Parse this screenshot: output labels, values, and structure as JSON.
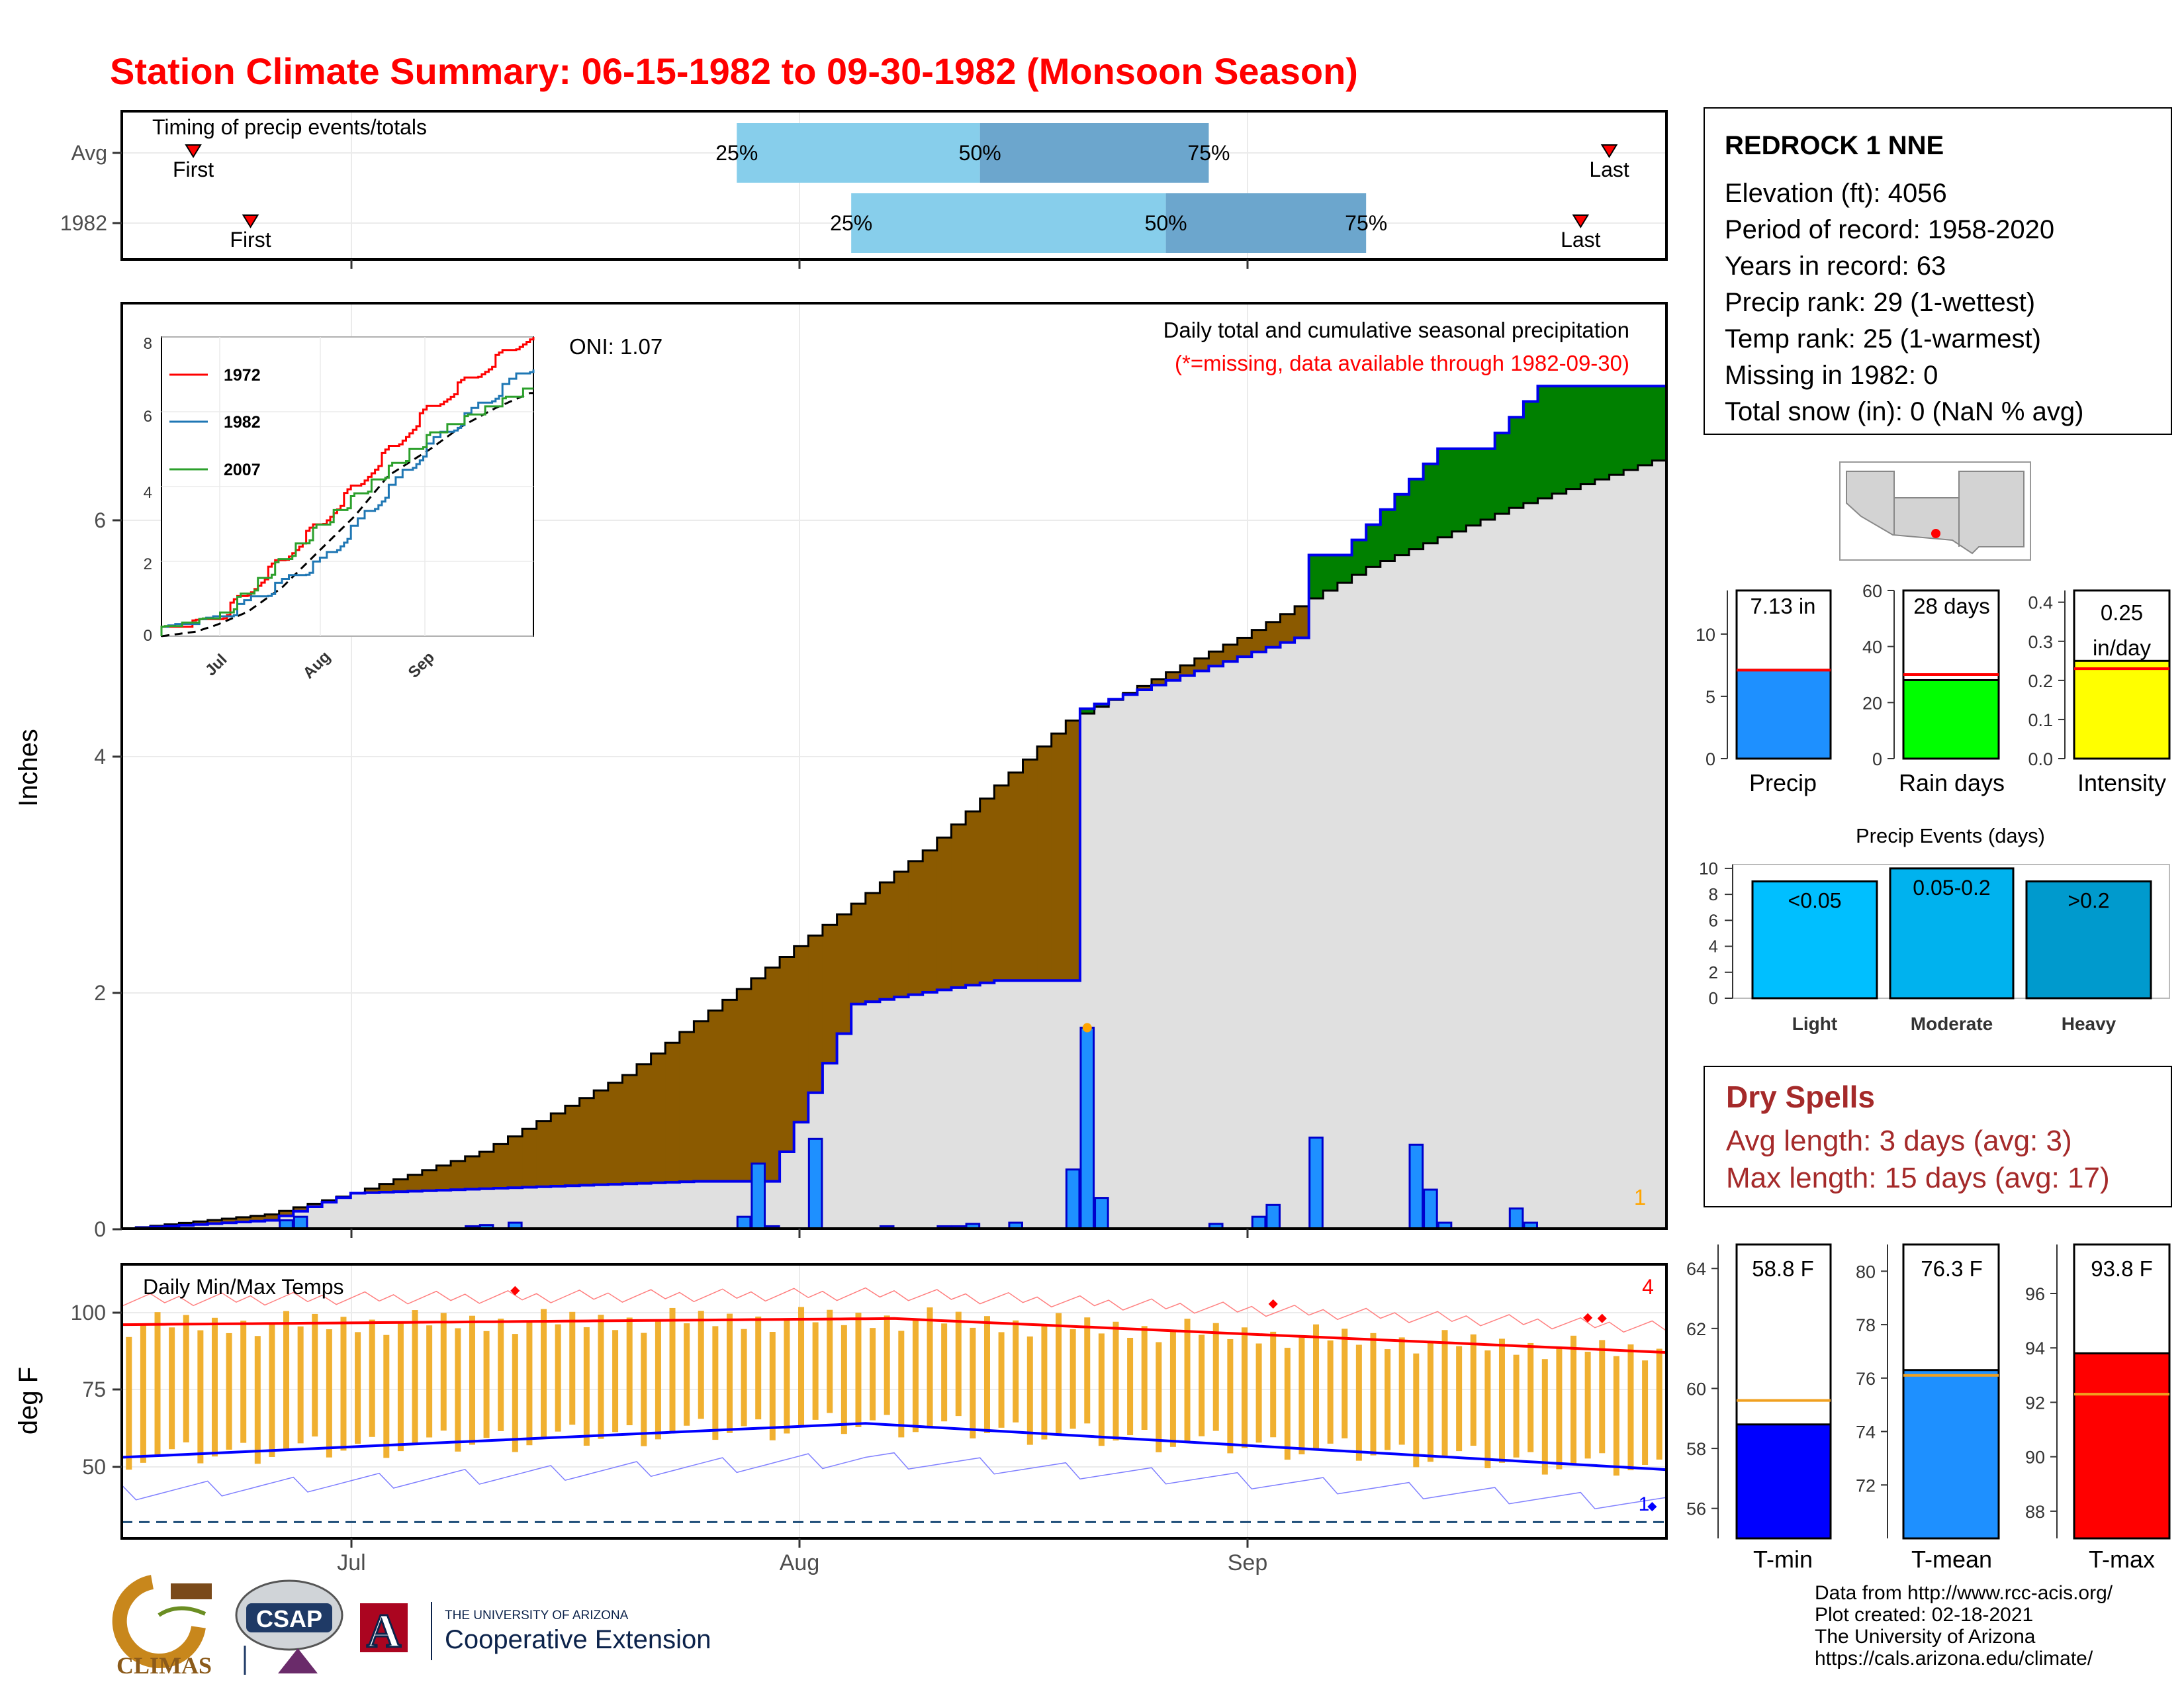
{
  "title": "Station Climate Summary: 06-15-1982 to 09-30-1982 (Monsoon Season)",
  "timing": {
    "label": "Timing of precip events/totals",
    "rows": [
      {
        "label": "Avg",
        "first": "Jun 20",
        "last": "Sep 27",
        "p25": "Jul 28",
        "p50": "Aug 14",
        "p75": "Aug 30"
      },
      {
        "label": "1982",
        "first": "Jun 24",
        "last": "Sep 25",
        "p25": "Aug 5",
        "p50": "Aug 27",
        "p75": "Sep 10"
      }
    ],
    "first_text": "First",
    "last_text": "Last",
    "p25_text": "25%",
    "p50_text": "50%",
    "p75_text": "75%"
  },
  "precip_panel": {
    "ylabel": "Inches",
    "oni": "ONI: 1.07",
    "subtitle": "Daily total and cumulative seasonal precipitation",
    "missing_note": "(*=missing, data available through 1982-09-30)",
    "missing_count": "1",
    "yticks": [
      "0",
      "2",
      "4",
      "6"
    ]
  },
  "inset": {
    "yticks": [
      "0",
      "2",
      "4",
      "6",
      "8"
    ],
    "xticks": [
      "Jul",
      "Aug",
      "Sep"
    ],
    "legend": [
      "1972",
      "1982",
      "2007"
    ]
  },
  "temp_panel": {
    "title": "Daily Min/Max Temps",
    "ylabel": "deg F",
    "record_high_count": "4",
    "record_low_count": "1",
    "yticks": [
      "50",
      "75",
      "100"
    ],
    "xticks": [
      "Jul",
      "Aug",
      "Sep"
    ]
  },
  "station": {
    "name": "REDROCK 1 NNE",
    "lines": [
      "Elevation (ft): 4056",
      "Period of record: 1958-2020",
      "Years in record: 63",
      "Precip rank: 29 (1-wettest)",
      "Temp rank: 25 (1-warmest)",
      "Missing in 1982: 0",
      "Total snow (in): 0 (NaN % avg)"
    ]
  },
  "summary_bars": [
    {
      "label": "Precip",
      "value_text": "7.13 in",
      "yticks": [
        "0",
        "5",
        "10"
      ],
      "color": "#1e90ff"
    },
    {
      "label": "Rain days",
      "value_text": "28 days",
      "yticks": [
        "0",
        "20",
        "40",
        "60"
      ],
      "color": "#00ff00"
    },
    {
      "label": "Intensity",
      "value_text": "0.25",
      "value_text2": "in/day",
      "yticks": [
        "0.0",
        "0.1",
        "0.2",
        "0.3",
        "0.4"
      ],
      "color": "#ffff00"
    }
  ],
  "events": {
    "title": "Precip Events (days)",
    "yticks": [
      "0",
      "2",
      "4",
      "6",
      "8",
      "10"
    ],
    "bars": [
      {
        "label": "Light",
        "range": "<0.05",
        "color": "#00bfff"
      },
      {
        "label": "Moderate",
        "range": "0.05-0.2",
        "color": "#00b2ee"
      },
      {
        "label": "Heavy",
        "range": ">0.2",
        "color": "#009acd"
      }
    ]
  },
  "dry_spells": {
    "title": "Dry Spells",
    "avg_length": "Avg length: 3 days (avg: 3)",
    "max_length": "Max length: 15 days (avg: 17)"
  },
  "temp_summary": [
    {
      "label": "T-min",
      "value_text": "58.8 F",
      "yticks": [
        "56",
        "58",
        "60",
        "62",
        "64"
      ],
      "color": "#0000ff"
    },
    {
      "label": "T-mean",
      "value_text": "76.3 F",
      "yticks": [
        "72",
        "74",
        "76",
        "78",
        "80"
      ],
      "color": "#1e90ff"
    },
    {
      "label": "T-max",
      "value_text": "93.8 F",
      "yticks": [
        "88",
        "90",
        "92",
        "94",
        "96"
      ],
      "color": "#ff0000"
    }
  ],
  "footer": [
    "Data from http://www.rcc-acis.org/",
    "Plot created: 02-18-2021",
    "The University of Arizona",
    "https://cals.arizona.edu/climate/"
  ],
  "logos": {
    "climas": "CLIMAS",
    "csap": "CSAP",
    "ua_line1": "THE UNIVERSITY OF ARIZONA",
    "ua_line2": "Cooperative Extension",
    "ua_letter": "A"
  },
  "chart_data": [
    {
      "type": "area",
      "title": "Daily total and cumulative seasonal precipitation",
      "xlabel": "",
      "ylabel": "Inches",
      "x_range": [
        "1982-06-15",
        "1982-09-30"
      ],
      "ylim": [
        0,
        7.8
      ],
      "series": [
        {
          "name": "1982",
          "description": "cumulative precipitation (step)",
          "dates": [
            "06-15",
            "06-25",
            "07-01",
            "07-25",
            "07-30",
            "08-05",
            "08-15",
            "08-20",
            "08-21",
            "09-05",
            "09-06",
            "09-07",
            "09-08",
            "09-15",
            "09-18",
            "09-21",
            "09-22",
            "09-30"
          ],
          "values": [
            0.0,
            0.07,
            0.3,
            0.4,
            0.4,
            1.9,
            2.1,
            2.1,
            4.4,
            5.0,
            5.7,
            5.7,
            5.7,
            6.6,
            6.6,
            7.0,
            7.13,
            7.13
          ]
        },
        {
          "name": "Avg",
          "description": "average cumulative precipitation",
          "dates": [
            "06-15",
            "06-25",
            "07-01",
            "07-10",
            "07-20",
            "07-31",
            "08-10",
            "08-20",
            "09-01",
            "09-10",
            "09-20",
            "09-30"
          ],
          "values": [
            0.0,
            0.12,
            0.3,
            0.65,
            1.3,
            2.3,
            3.2,
            4.3,
            5.0,
            5.6,
            6.1,
            6.5
          ]
        },
        {
          "name": "daily",
          "description": "daily precipitation bars",
          "dates": [
            "06-26",
            "06-27",
            "07-09",
            "07-10",
            "07-12",
            "07-28",
            "07-29",
            "07-30",
            "08-02",
            "08-07",
            "08-11",
            "08-12",
            "08-13",
            "08-16",
            "08-20",
            "08-21",
            "08-22",
            "08-23",
            "08-30",
            "09-02",
            "09-03",
            "09-06",
            "09-13",
            "09-14",
            "09-15",
            "09-20",
            "09-21"
          ],
          "values": [
            0.07,
            0.1,
            0.02,
            0.03,
            0.05,
            0.1,
            0.55,
            0.02,
            0.76,
            0.02,
            0.02,
            0.02,
            0.04,
            0.05,
            0.5,
            1.7,
            0.26,
            0.0,
            0.04,
            0.1,
            0.2,
            0.77,
            0.71,
            0.33,
            0.05,
            0.17,
            0.05
          ]
        }
      ]
    },
    {
      "type": "line",
      "title": "",
      "ylim": [
        0,
        8
      ],
      "series": [
        {
          "name": "1972",
          "values_by_month_start": {
            "Jul": 0.3,
            "Aug": 3.0,
            "Sep": 6.0,
            "Oct": 8.0
          }
        },
        {
          "name": "1982",
          "values_by_month_start": {
            "Jul": 0.3,
            "Aug": 1.9,
            "Sep": 5.0,
            "Oct": 7.13
          }
        },
        {
          "name": "2007",
          "values_by_month_start": {
            "Jul": 0.3,
            "Aug": 2.9,
            "Sep": 5.2,
            "Oct": 6.5
          }
        }
      ]
    },
    {
      "type": "bar",
      "title": "Daily Min/Max Temps",
      "ylabel": "deg F",
      "ylim": [
        32,
        113
      ],
      "x_range": [
        "1982-06-15",
        "1982-09-30"
      ],
      "avg_max_start": 96,
      "avg_max_mid": 98,
      "avg_max_end": 87,
      "avg_min_start": 53,
      "avg_min_mid": 64,
      "avg_min_end": 49,
      "freezing_line": 32
    },
    {
      "type": "bar",
      "categories": [
        "Precip",
        "Rain days",
        "Intensity"
      ],
      "values": [
        7.13,
        28,
        0.25
      ],
      "averages": [
        7.1,
        30,
        0.23
      ],
      "ylims": [
        [
          0,
          13.5
        ],
        [
          0,
          60
        ],
        [
          0,
          0.43
        ]
      ]
    },
    {
      "type": "bar",
      "title": "Precip Events (days)",
      "categories": [
        "Light",
        "Moderate",
        "Heavy"
      ],
      "values": [
        9,
        10,
        9
      ],
      "ylim": [
        0,
        10.3
      ]
    },
    {
      "type": "bar",
      "categories": [
        "T-min",
        "T-mean",
        "T-max"
      ],
      "values": [
        58.8,
        76.3,
        93.8
      ],
      "averages": [
        59.6,
        76.1,
        92.3
      ],
      "ylims": [
        [
          55,
          64.8
        ],
        [
          70,
          81
        ],
        [
          87,
          97.8
        ]
      ]
    }
  ]
}
